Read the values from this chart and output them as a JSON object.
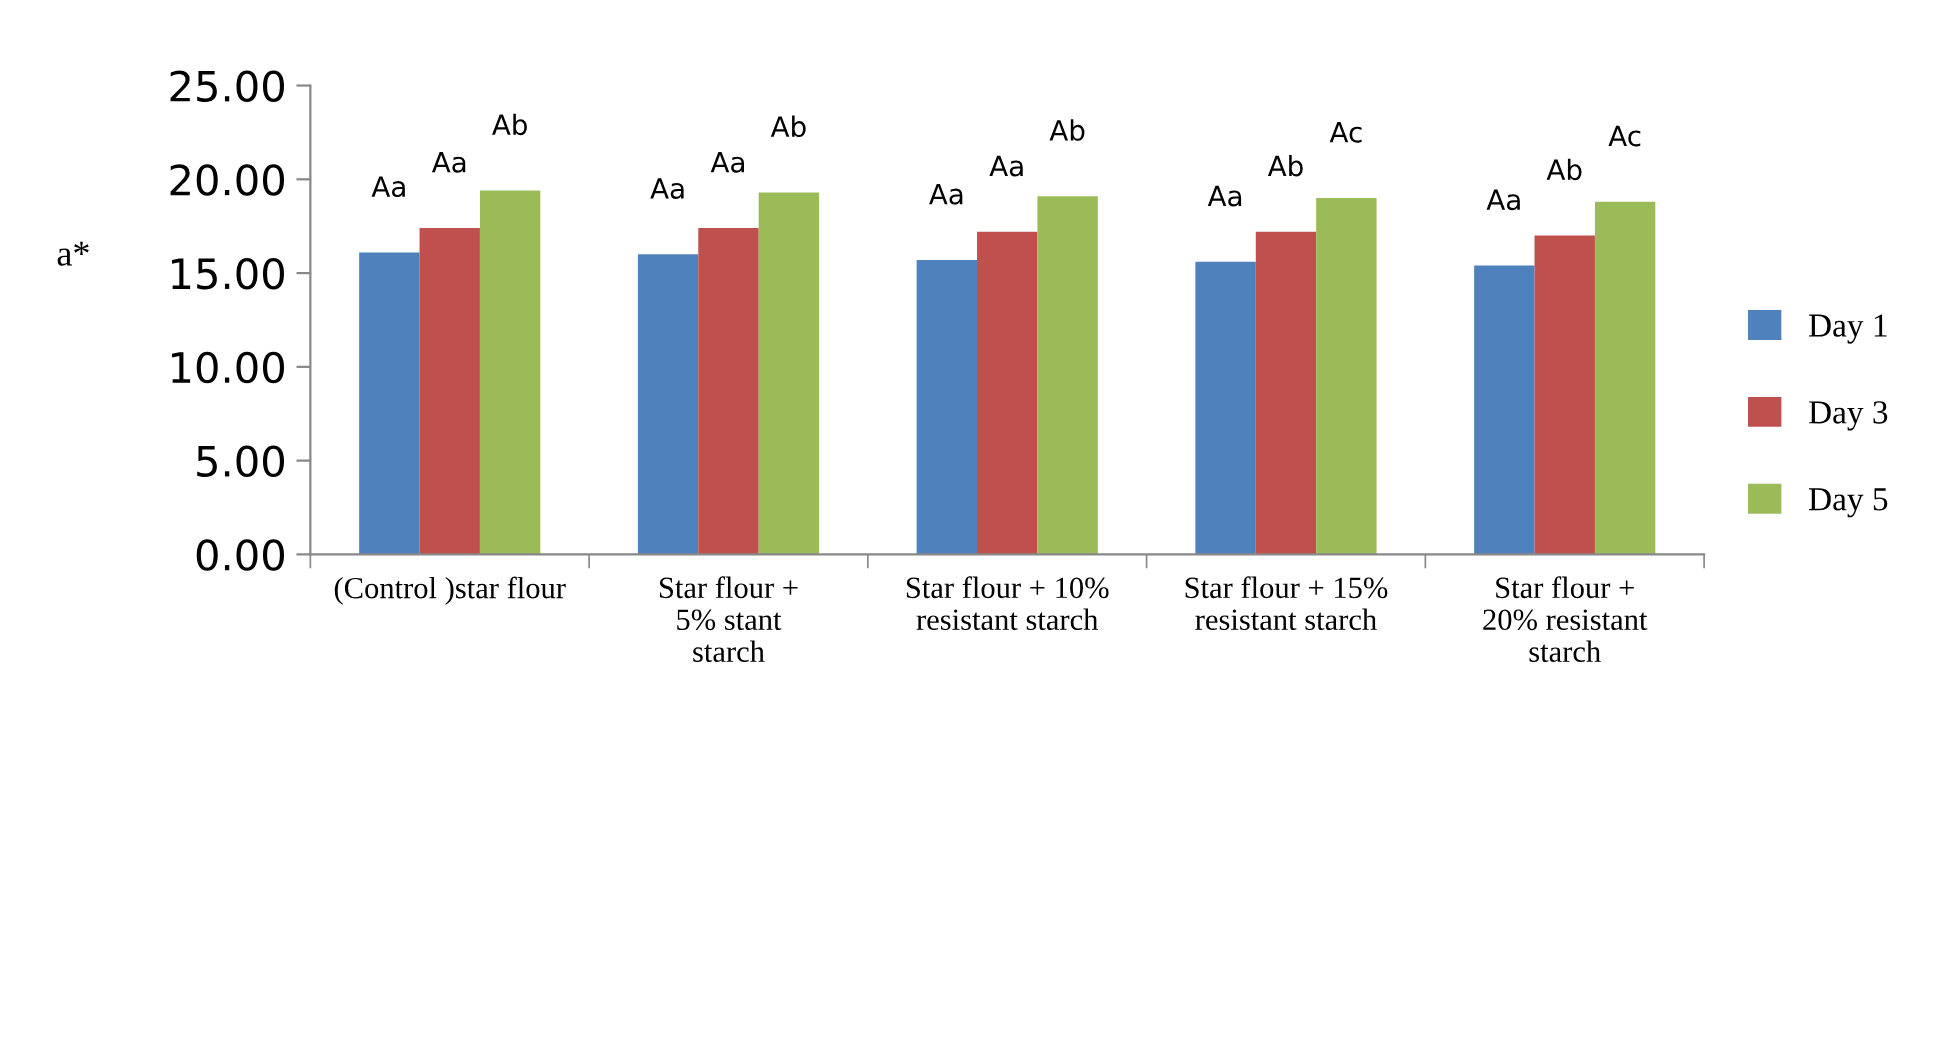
{
  "chart_data": {
    "type": "bar",
    "ylabel": "a*",
    "categories": [
      "(Control )star flour",
      "Star flour +\n5% stant\nstarch",
      "Star flour + 10%\nresistant starch",
      "Star flour + 15%\nresistant starch",
      "Star flour +\n20% resistant\nstarch"
    ],
    "series": [
      {
        "name": "Day 1",
        "color": "#4f81bd",
        "values": [
          16.1,
          16.0,
          15.7,
          15.6,
          15.4
        ],
        "value_labels": [
          "Aa",
          "Aa",
          "Aa",
          "Aa",
          "Aa"
        ]
      },
      {
        "name": "Day 3",
        "color": "#c0504d",
        "values": [
          17.4,
          17.4,
          17.2,
          17.2,
          17.0
        ],
        "value_labels": [
          "Aa",
          "Aa",
          "Aa",
          "Ab",
          "Ab"
        ]
      },
      {
        "name": "Day 5",
        "color": "#9bbb59",
        "values": [
          19.4,
          19.3,
          19.1,
          19.0,
          18.8
        ],
        "value_labels": [
          "Ab",
          "Ab",
          "Ab",
          "Ac",
          "Ac"
        ]
      }
    ],
    "ylim": [
      0,
      25
    ],
    "yticks": [
      {
        "value": 0,
        "label": "0.00"
      },
      {
        "value": 5,
        "label": "5.00"
      },
      {
        "value": 10,
        "label": "10.00"
      },
      {
        "value": 15,
        "label": "15.00"
      },
      {
        "value": 20,
        "label": "20.00"
      },
      {
        "value": 25,
        "label": "25.00"
      }
    ],
    "grid": false,
    "legend": "right"
  }
}
